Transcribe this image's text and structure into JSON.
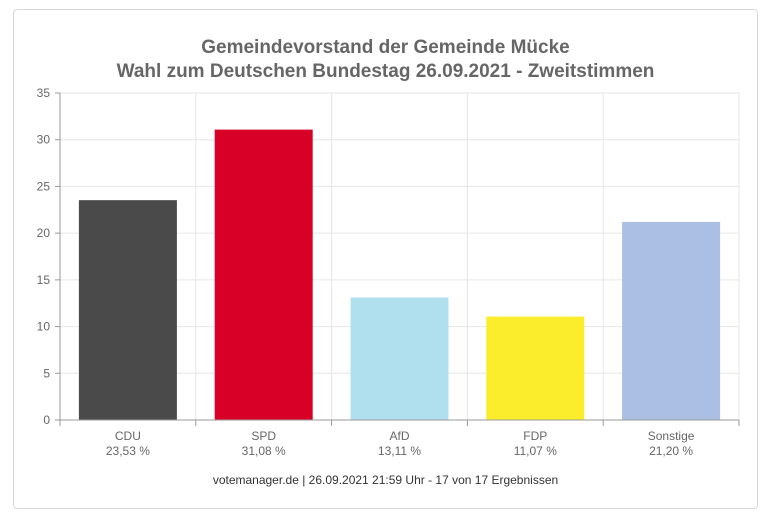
{
  "chart_data": {
    "type": "bar",
    "title": "Gemeindevorstand der Gemeinde Mücke",
    "subtitle": "Wahl zum Deutschen Bundestag 26.09.2021  - Zweitstimmen",
    "categories": [
      "CDU",
      "SPD",
      "AfD",
      "FDP",
      "Sonstige"
    ],
    "values": [
      23.53,
      31.08,
      13.11,
      11.07,
      21.2
    ],
    "value_labels": [
      "23,53 %",
      "31,08 %",
      "13,11 %",
      "11,07 %",
      "21,20 %"
    ],
    "colors": [
      "#4a4a4a",
      "#d80027",
      "#b0e0ee",
      "#fced2c",
      "#abbee4"
    ],
    "y_ticks": [
      "0",
      "5",
      "10",
      "15",
      "20",
      "25",
      "30",
      "35"
    ],
    "ylim": [
      0,
      35
    ],
    "grid": true,
    "legend": "none"
  },
  "footer": "votemanager.de | 26.09.2021 21:59 Uhr - 17 von 17 Ergebnissen"
}
